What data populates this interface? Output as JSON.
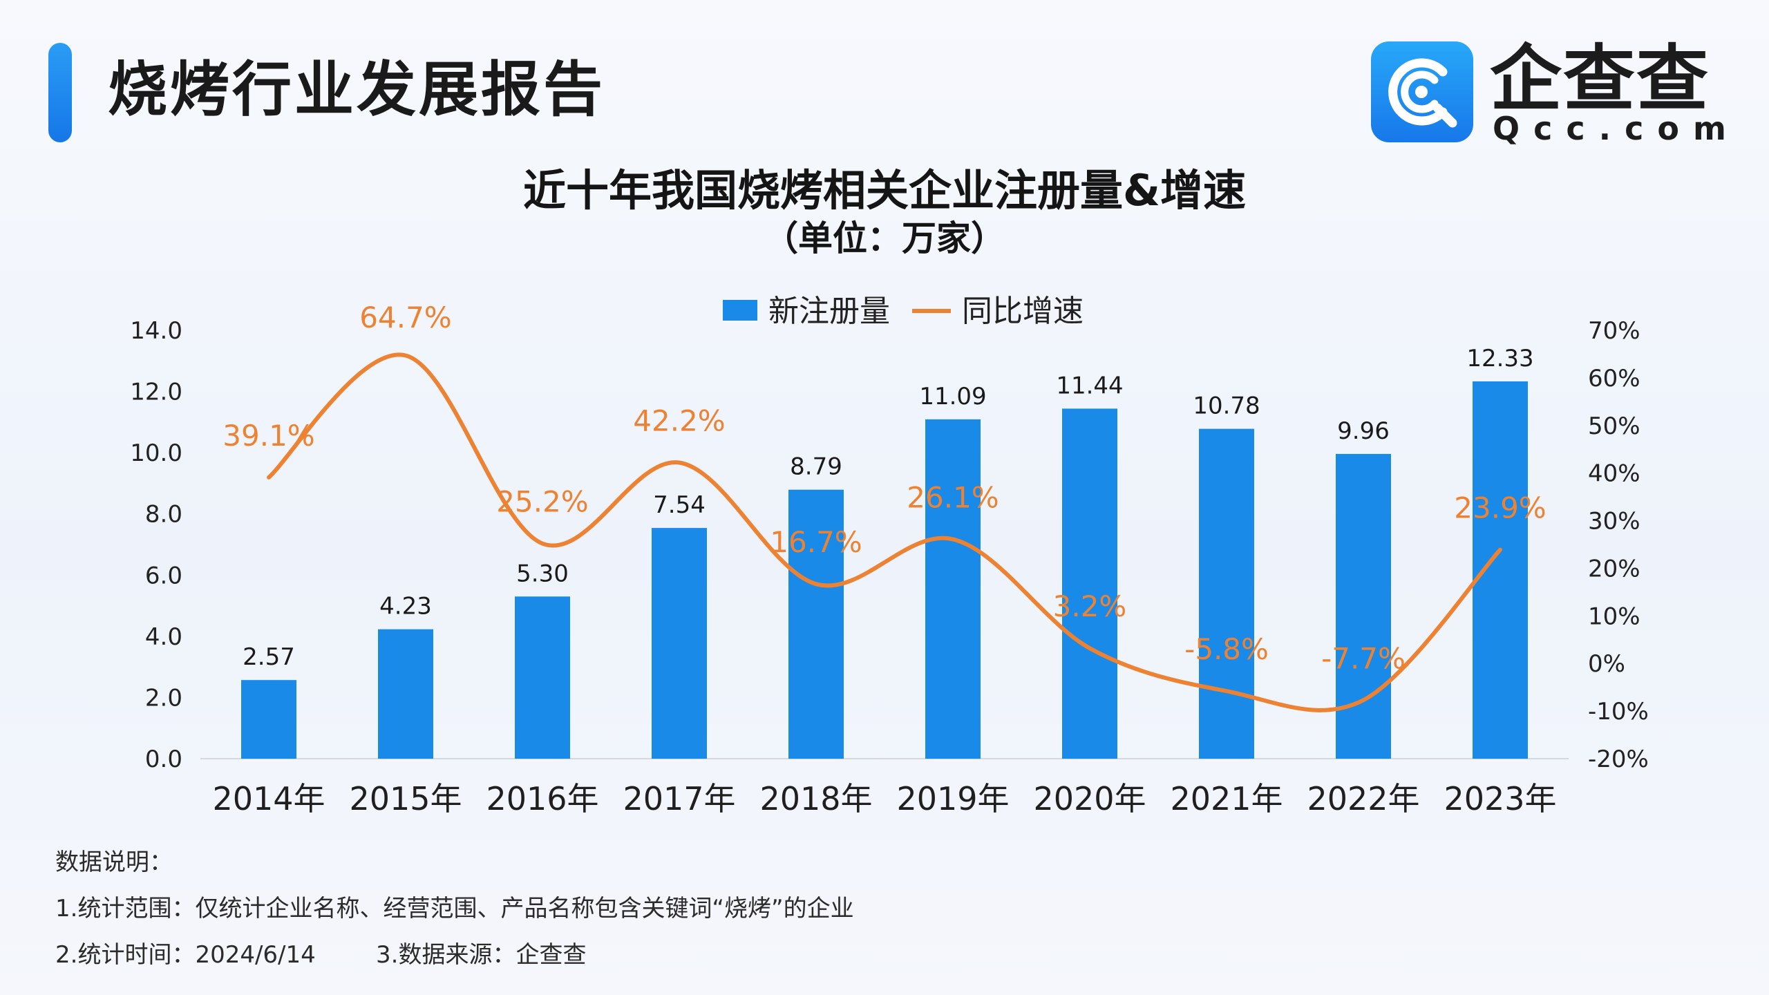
{
  "header": {
    "title": "烧烤行业发展报告",
    "brand_name": "企查查",
    "brand_domain": "Qcc.com"
  },
  "notes": {
    "label": "数据说明：",
    "scope": "1.统计范围：仅统计企业名称、经营范围、产品名称包含关键词“烧烤”的企业",
    "time": "2.统计时间：2024/6/14",
    "source": "3.数据来源：企查查"
  },
  "colors": {
    "bar": "#1a8ae8",
    "line": "#ed8232",
    "accent": "#1d86ee"
  },
  "icons": [
    "qcc-logo-icon"
  ],
  "chart_data": {
    "type": "bar",
    "title": "近十年我国烧烤相关企业注册量&增速",
    "subtitle": "（单位：万家）",
    "categories": [
      "2014年",
      "2015年",
      "2016年",
      "2017年",
      "2018年",
      "2019年",
      "2020年",
      "2021年",
      "2022年",
      "2023年"
    ],
    "series": [
      {
        "name": "新注册量",
        "type": "bar",
        "axis": "left",
        "values": [
          2.57,
          4.23,
          5.3,
          7.54,
          8.79,
          11.09,
          11.44,
          10.78,
          9.96,
          12.33
        ],
        "labels": [
          "2.57",
          "4.23",
          "5.30",
          "7.54",
          "8.79",
          "11.09",
          "11.44",
          "10.78",
          "9.96",
          "12.33"
        ]
      },
      {
        "name": "同比增速",
        "type": "line",
        "axis": "right",
        "values": [
          39.1,
          64.7,
          25.2,
          42.2,
          16.7,
          26.1,
          3.2,
          -5.8,
          -7.7,
          23.9
        ],
        "labels": [
          "39.1%",
          "64.7%",
          "25.2%",
          "42.2%",
          "16.7%",
          "26.1%",
          "3.2%",
          "-5.8%",
          "-7.7%",
          "23.9%"
        ]
      }
    ],
    "y_left": {
      "range": [
        0,
        14
      ],
      "ticks": [
        "0.0",
        "2.0",
        "4.0",
        "6.0",
        "8.0",
        "10.0",
        "12.0",
        "14.0"
      ]
    },
    "y_right": {
      "range": [
        -20,
        70
      ],
      "ticks": [
        "-20%",
        "-10%",
        "0%",
        "10%",
        "20%",
        "30%",
        "40%",
        "50%",
        "60%",
        "70%"
      ]
    },
    "grid": false,
    "smooth_line": true,
    "legend_position": "top-center"
  }
}
